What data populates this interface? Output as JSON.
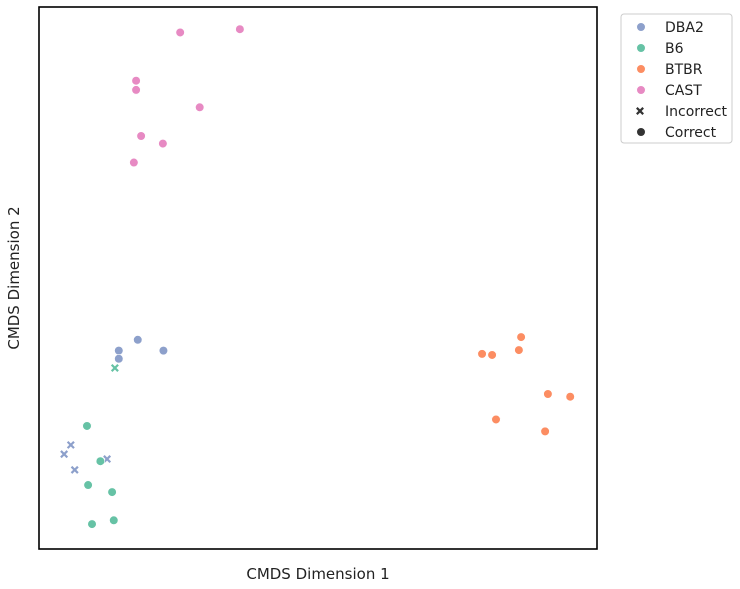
{
  "chart_data": {
    "type": "scatter",
    "xlabel": "CMDS Dimension 1",
    "ylabel": "CMDS Dimension 2",
    "xlim": [
      0,
      100
    ],
    "ylim": [
      0,
      100
    ],
    "grid": false,
    "legend_placement": "outside-top-right",
    "series": [
      {
        "name": "DBA2",
        "color": "#8da0cb",
        "points": [
          {
            "x": 17.7,
            "y": 38.6,
            "correct": true
          },
          {
            "x": 14.3,
            "y": 36.6,
            "correct": true
          },
          {
            "x": 22.3,
            "y": 36.6,
            "correct": true
          },
          {
            "x": 14.3,
            "y": 35.1,
            "correct": true
          },
          {
            "x": 5.7,
            "y": 19.2,
            "correct": false
          },
          {
            "x": 4.5,
            "y": 17.5,
            "correct": false
          },
          {
            "x": 12.2,
            "y": 16.6,
            "correct": false
          },
          {
            "x": 6.4,
            "y": 14.6,
            "correct": false
          }
        ]
      },
      {
        "name": "B6",
        "color": "#66c2a5",
        "points": [
          {
            "x": 13.6,
            "y": 33.4,
            "correct": false
          },
          {
            "x": 8.6,
            "y": 22.7,
            "correct": true
          },
          {
            "x": 11.0,
            "y": 16.2,
            "correct": true
          },
          {
            "x": 8.8,
            "y": 11.8,
            "correct": true
          },
          {
            "x": 13.1,
            "y": 10.5,
            "correct": true
          },
          {
            "x": 13.4,
            "y": 5.3,
            "correct": true
          },
          {
            "x": 9.5,
            "y": 4.6,
            "correct": true
          }
        ]
      },
      {
        "name": "BTBR",
        "color": "#fc8d62",
        "points": [
          {
            "x": 86.4,
            "y": 39.1,
            "correct": true
          },
          {
            "x": 86.0,
            "y": 36.7,
            "correct": true
          },
          {
            "x": 79.4,
            "y": 36.0,
            "correct": true
          },
          {
            "x": 81.2,
            "y": 35.8,
            "correct": true
          },
          {
            "x": 91.2,
            "y": 28.6,
            "correct": true
          },
          {
            "x": 95.2,
            "y": 28.1,
            "correct": true
          },
          {
            "x": 81.9,
            "y": 23.9,
            "correct": true
          },
          {
            "x": 90.7,
            "y": 21.7,
            "correct": true
          }
        ]
      },
      {
        "name": "CAST",
        "color": "#e78ac3",
        "points": [
          {
            "x": 36.0,
            "y": 95.9,
            "correct": true
          },
          {
            "x": 25.3,
            "y": 95.3,
            "correct": true
          },
          {
            "x": 17.4,
            "y": 86.4,
            "correct": true
          },
          {
            "x": 17.4,
            "y": 84.7,
            "correct": true
          },
          {
            "x": 28.8,
            "y": 81.5,
            "correct": true
          },
          {
            "x": 18.3,
            "y": 76.2,
            "correct": true
          },
          {
            "x": 22.2,
            "y": 74.8,
            "correct": true
          },
          {
            "x": 17.0,
            "y": 71.3,
            "correct": true
          }
        ]
      }
    ],
    "marker_legend": [
      {
        "label": "Incorrect",
        "marker": "x"
      },
      {
        "label": "Correct",
        "marker": "o"
      }
    ]
  }
}
